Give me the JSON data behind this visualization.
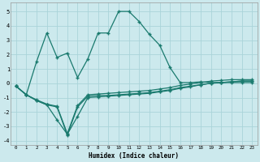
{
  "xlabel": "Humidex (Indice chaleur)",
  "background_color": "#cce9ed",
  "grid_color": "#aad4d9",
  "line_color": "#1a7a6e",
  "xlim": [
    -0.5,
    23.5
  ],
  "ylim": [
    -4.3,
    5.6
  ],
  "xticks": [
    0,
    1,
    2,
    3,
    4,
    5,
    6,
    7,
    8,
    9,
    10,
    11,
    12,
    13,
    14,
    15,
    16,
    17,
    18,
    19,
    20,
    21,
    22,
    23
  ],
  "yticks": [
    -4,
    -3,
    -2,
    -1,
    0,
    1,
    2,
    3,
    4,
    5
  ],
  "curve_peak_x": [
    0,
    1,
    2,
    3,
    4,
    5,
    6,
    7,
    8,
    9,
    10,
    11,
    12,
    13,
    14,
    15,
    16,
    17,
    18,
    19,
    20,
    21,
    22,
    23
  ],
  "curve_peak_y": [
    -0.2,
    -0.8,
    1.5,
    3.5,
    1.8,
    2.1,
    0.4,
    1.7,
    3.5,
    3.5,
    5.0,
    5.0,
    4.3,
    3.4,
    2.65,
    1.1,
    0.05,
    0.05,
    0.1,
    0.05,
    0.05,
    0.05,
    0.05,
    0.05
  ],
  "curve_a_x": [
    0,
    1,
    2,
    3,
    4,
    5,
    6,
    7,
    8,
    9,
    10,
    11,
    12,
    13,
    14,
    15,
    16,
    17,
    18,
    19,
    20,
    21,
    22,
    23
  ],
  "curve_a_y": [
    -0.2,
    -0.8,
    -1.2,
    -1.5,
    -1.65,
    -3.6,
    -1.65,
    -0.9,
    -0.85,
    -0.85,
    -0.8,
    -0.75,
    -0.7,
    -0.65,
    -0.55,
    -0.45,
    -0.3,
    -0.2,
    -0.1,
    0.0,
    0.05,
    0.1,
    0.15,
    0.15
  ],
  "curve_b_x": [
    0,
    1,
    2,
    3,
    4,
    5,
    6,
    7,
    8,
    9,
    10,
    11,
    12,
    13,
    14,
    15,
    16,
    17,
    18,
    19,
    20,
    21,
    22,
    23
  ],
  "curve_b_y": [
    -0.2,
    -0.8,
    -1.2,
    -1.5,
    -2.55,
    -3.55,
    -2.3,
    -1.0,
    -0.95,
    -0.9,
    -0.85,
    -0.8,
    -0.75,
    -0.7,
    -0.6,
    -0.5,
    -0.35,
    -0.25,
    -0.1,
    -0.0,
    0.05,
    0.1,
    0.15,
    0.15
  ],
  "curve_c_x": [
    0,
    1,
    2,
    3,
    4,
    5,
    6,
    7,
    8,
    9,
    10,
    11,
    12,
    13,
    14,
    15,
    16,
    17,
    18,
    19,
    20,
    21,
    22,
    23
  ],
  "curve_c_y": [
    -0.2,
    -0.8,
    -1.15,
    -1.45,
    -1.6,
    -3.5,
    -1.55,
    -0.8,
    -0.75,
    -0.7,
    -0.65,
    -0.6,
    -0.55,
    -0.5,
    -0.4,
    -0.3,
    -0.15,
    -0.05,
    0.05,
    0.15,
    0.2,
    0.25,
    0.25,
    0.25
  ]
}
